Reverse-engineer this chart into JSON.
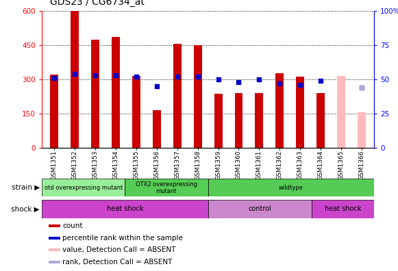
{
  "title": "GDS23 / CG6734_at",
  "samples": [
    "GSM1351",
    "GSM1352",
    "GSM1353",
    "GSM1354",
    "GSM1355",
    "GSM1356",
    "GSM1357",
    "GSM1358",
    "GSM1359",
    "GSM1360",
    "GSM1361",
    "GSM1362",
    "GSM1363",
    "GSM1364",
    "GSM1365",
    "GSM1366"
  ],
  "counts": [
    320,
    600,
    475,
    485,
    315,
    165,
    455,
    450,
    235,
    240,
    240,
    325,
    310,
    240,
    null,
    null
  ],
  "percentile_ranks": [
    51,
    54,
    53,
    53,
    52,
    45,
    52,
    52,
    50,
    48,
    50,
    47,
    46,
    49,
    null,
    44
  ],
  "absent_value": [
    null,
    null,
    null,
    null,
    null,
    null,
    null,
    null,
    null,
    null,
    null,
    null,
    null,
    null,
    315,
    155
  ],
  "absent_rank_pct": [
    null,
    null,
    null,
    null,
    null,
    null,
    null,
    null,
    null,
    null,
    null,
    null,
    null,
    null,
    null,
    44
  ],
  "bar_color": "#cc0000",
  "absent_bar_color": "#ffbbbb",
  "rank_color": "#0000cc",
  "absent_rank_color": "#aaaadd",
  "ylim_left": [
    0,
    600
  ],
  "ylim_right": [
    0,
    100
  ],
  "yticks_left": [
    0,
    150,
    300,
    450,
    600
  ],
  "yticks_right": [
    0,
    25,
    50,
    75,
    100
  ],
  "ytick_labels_left": [
    "0",
    "150",
    "300",
    "450",
    "600"
  ],
  "ytick_labels_right": [
    "0",
    "25",
    "50",
    "75",
    "100%"
  ],
  "strain_starts": [
    0,
    4,
    8
  ],
  "strain_ends": [
    4,
    8,
    16
  ],
  "strain_labels": [
    "otd overexpressing mutant",
    "OTX2 overexpressing\nmutant",
    "wildtype"
  ],
  "strain_colors": [
    "#99ee99",
    "#55cc55",
    "#55cc55"
  ],
  "shock_starts": [
    0,
    8,
    13
  ],
  "shock_ends": [
    8,
    13,
    16
  ],
  "shock_labels": [
    "heat shock",
    "control",
    "heat shock"
  ],
  "shock_colors": [
    "#cc44cc",
    "#cc88cc",
    "#cc44cc"
  ],
  "legend_colors": [
    "#cc0000",
    "#0000cc",
    "#ffbbbb",
    "#aaaadd"
  ],
  "legend_labels": [
    "count",
    "percentile rank within the sample",
    "value, Detection Call = ABSENT",
    "rank, Detection Call = ABSENT"
  ],
  "background_color": "#ffffff",
  "bar_width": 0.4,
  "rank_marker_size": 25
}
